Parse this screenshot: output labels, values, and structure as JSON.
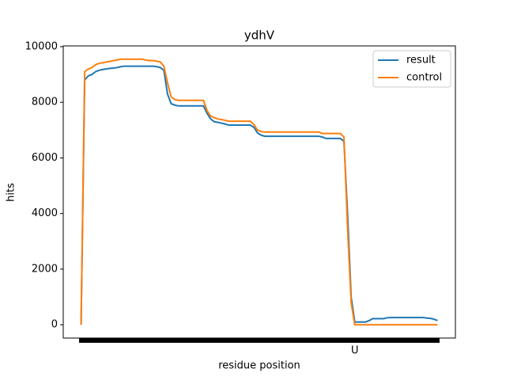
{
  "chart_data": {
    "type": "line",
    "title": "ydhV",
    "xlabel": "residue position",
    "ylabel": "hits",
    "categories": [
      null,
      null,
      null,
      null,
      null,
      null,
      null,
      null,
      null,
      null,
      null,
      null,
      null,
      null,
      null,
      null,
      null,
      null,
      null,
      null,
      null,
      null,
      null,
      null,
      null,
      null,
      null,
      null,
      null,
      null,
      null,
      null,
      null,
      null,
      null,
      null,
      null,
      null,
      null,
      null,
      null,
      null,
      null,
      null,
      null,
      null,
      null,
      null,
      null,
      null,
      null,
      null,
      null,
      null,
      null,
      null,
      null,
      null,
      null,
      null,
      null,
      null,
      null,
      null,
      null,
      null,
      null,
      null,
      null,
      null,
      null,
      null,
      null,
      null,
      null,
      null,
      "U",
      null,
      null,
      null,
      null,
      null,
      null,
      null,
      null,
      null,
      null,
      null,
      null,
      null,
      null,
      null,
      null,
      null,
      null,
      null,
      null,
      null,
      null,
      null
    ],
    "series": [
      {
        "name": "result",
        "color": "#1f77b4",
        "values": [
          0,
          8800,
          8950,
          9000,
          9100,
          9150,
          9180,
          9200,
          9220,
          9230,
          9250,
          9280,
          9300,
          9300,
          9300,
          9300,
          9300,
          9300,
          9300,
          9300,
          9300,
          9280,
          9250,
          9150,
          8300,
          7950,
          7900,
          7870,
          7870,
          7870,
          7870,
          7870,
          7870,
          7870,
          7870,
          7600,
          7400,
          7300,
          7280,
          7250,
          7220,
          7180,
          7180,
          7180,
          7180,
          7180,
          7180,
          7180,
          7100,
          6900,
          6820,
          6780,
          6780,
          6780,
          6780,
          6780,
          6780,
          6780,
          6780,
          6780,
          6780,
          6780,
          6780,
          6780,
          6780,
          6780,
          6780,
          6750,
          6700,
          6700,
          6700,
          6700,
          6700,
          6600,
          4000,
          1000,
          100,
          100,
          100,
          100,
          150,
          220,
          220,
          220,
          220,
          250,
          260,
          260,
          260,
          260,
          260,
          260,
          260,
          260,
          260,
          260,
          240,
          230,
          200,
          150
        ]
      },
      {
        "name": "control",
        "color": "#ff7f0e",
        "values": [
          0,
          9100,
          9200,
          9250,
          9350,
          9400,
          9420,
          9450,
          9470,
          9500,
          9520,
          9550,
          9550,
          9550,
          9550,
          9550,
          9550,
          9550,
          9520,
          9500,
          9500,
          9480,
          9450,
          9300,
          8700,
          8200,
          8100,
          8070,
          8070,
          8070,
          8070,
          8070,
          8070,
          8070,
          8070,
          7700,
          7500,
          7450,
          7400,
          7380,
          7350,
          7320,
          7320,
          7320,
          7320,
          7320,
          7320,
          7320,
          7200,
          7000,
          6950,
          6930,
          6930,
          6930,
          6930,
          6930,
          6930,
          6930,
          6930,
          6930,
          6930,
          6930,
          6930,
          6930,
          6930,
          6930,
          6930,
          6880,
          6880,
          6880,
          6880,
          6880,
          6880,
          6750,
          3500,
          800,
          0,
          0,
          0,
          0,
          0,
          0,
          0,
          0,
          0,
          0,
          0,
          0,
          0,
          0,
          0,
          0,
          0,
          0,
          0,
          0,
          0,
          0,
          0,
          0
        ]
      }
    ],
    "xlim": [
      -4.95,
      103.95
    ],
    "ylim": [
      -478,
      10028
    ],
    "yticks": [
      0,
      2000,
      4000,
      6000,
      8000,
      10000
    ],
    "legend": "upper right"
  }
}
